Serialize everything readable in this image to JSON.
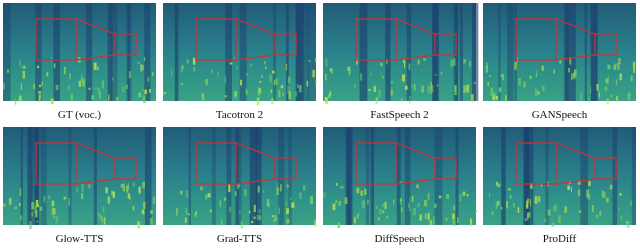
{
  "panels": [
    {
      "label": "GT (voc.)"
    },
    {
      "label": "Tacotron 2"
    },
    {
      "label": "FastSpeech 2"
    },
    {
      "label": "GANSpeech"
    },
    {
      "label": "Glow-TTS"
    },
    {
      "label": "Grad-TTS"
    },
    {
      "label": "DiffSpeech"
    },
    {
      "label": "ProDiff"
    }
  ]
}
